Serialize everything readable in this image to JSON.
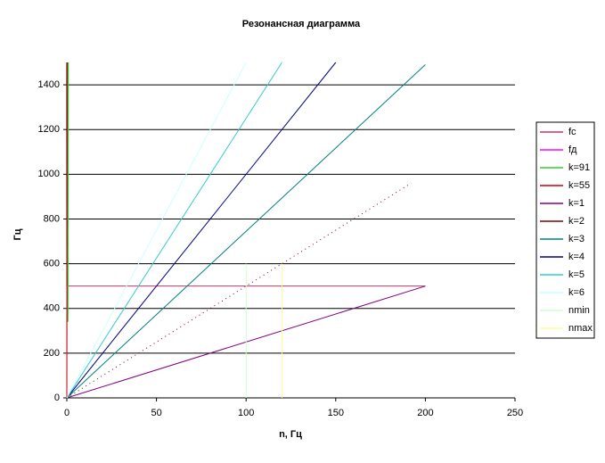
{
  "chart_data": {
    "type": "line",
    "title": "Резонансная диаграмма",
    "xlabel": "n, Гц",
    "ylabel": "Гц",
    "xlim": [
      0,
      250
    ],
    "xticks": [
      0,
      50,
      100,
      150,
      200,
      250
    ],
    "ylim": [
      0,
      1500
    ],
    "yticks": [
      0,
      200,
      400,
      600,
      800,
      1000,
      1200,
      1400
    ],
    "grid": true,
    "legend": "right",
    "series": [
      {
        "name": "fc",
        "color": "#cc3366",
        "x": [
          0,
          200
        ],
        "values": [
          500,
          500
        ]
      },
      {
        "name": "fд",
        "color": "#ff00ff",
        "x": [
          0,
          0
        ],
        "values": [
          0,
          500
        ]
      },
      {
        "name": "k=91",
        "color": "#33cc33",
        "x": [
          0.4,
          0.6
        ],
        "values": [
          340,
          1500
        ]
      },
      {
        "name": "k=55",
        "color": "#cc0000",
        "x": [
          0,
          0.3
        ],
        "values": [
          0,
          1500
        ]
      },
      {
        "name": "k=1",
        "color": "#800080",
        "x": [
          0,
          200
        ],
        "values": [
          0,
          500
        ]
      },
      {
        "name": "k=2",
        "color": "#800000",
        "x": [
          0,
          192
        ],
        "values": [
          0,
          960
        ],
        "dashed": true
      },
      {
        "name": "k=3",
        "color": "#008080",
        "x": [
          0,
          200
        ],
        "values": [
          0,
          1490
        ]
      },
      {
        "name": "k=4",
        "color": "#000080",
        "x": [
          0,
          150
        ],
        "values": [
          0,
          1500
        ]
      },
      {
        "name": "k=5",
        "color": "#33cccc",
        "x": [
          0,
          120
        ],
        "values": [
          0,
          1500
        ]
      },
      {
        "name": "k=6",
        "color": "#ccffff",
        "x": [
          0,
          100
        ],
        "values": [
          0,
          1500
        ]
      },
      {
        "name": "nmin",
        "color": "#ccffcc",
        "x": [
          100,
          100
        ],
        "values": [
          0,
          600
        ]
      },
      {
        "name": "nmax",
        "color": "#ffff99",
        "x": [
          120,
          120
        ],
        "values": [
          0,
          600
        ]
      }
    ]
  }
}
